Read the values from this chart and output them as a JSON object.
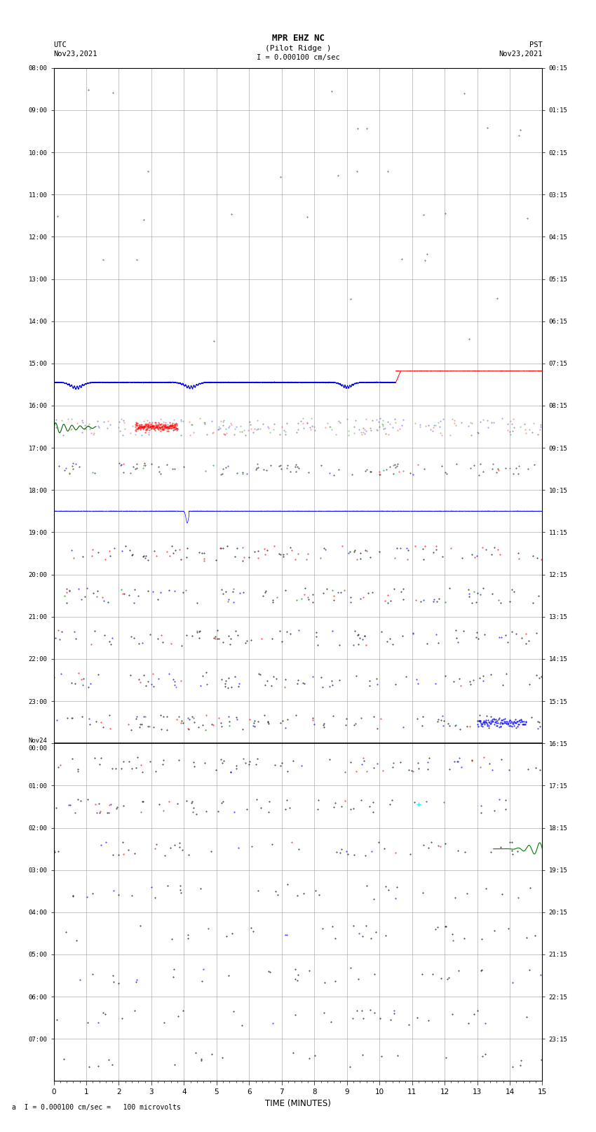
{
  "title_line1": "MPR EHZ NC",
  "title_line2": "(Pilot Ridge )",
  "title_scale": "I = 0.000100 cm/sec",
  "left_label_top": "UTC",
  "left_label_date": "Nov23,2021",
  "right_label_top": "PST",
  "right_label_date": "Nov23,2021",
  "left_times_utc": [
    "08:00",
    "09:00",
    "10:00",
    "11:00",
    "12:00",
    "13:00",
    "14:00",
    "15:00",
    "16:00",
    "17:00",
    "18:00",
    "19:00",
    "20:00",
    "21:00",
    "22:00",
    "23:00",
    "Nov24\n00:00",
    "01:00",
    "02:00",
    "03:00",
    "04:00",
    "05:00",
    "06:00",
    "07:00"
  ],
  "right_times_pst": [
    "00:15",
    "01:15",
    "02:15",
    "03:15",
    "04:15",
    "05:15",
    "06:15",
    "07:15",
    "08:15",
    "09:15",
    "10:15",
    "11:15",
    "12:15",
    "13:15",
    "14:15",
    "15:15",
    "16:15",
    "17:15",
    "18:15",
    "19:15",
    "20:15",
    "21:15",
    "22:15",
    "23:15"
  ],
  "xlabel": "TIME (MINUTES)",
  "footnote": "a  I = 0.000100 cm/sec =   100 microvolts",
  "xlim": [
    0,
    15
  ],
  "n_rows": 24,
  "background_color": "#ffffff",
  "grid_color": "#999999",
  "fig_width": 8.5,
  "fig_height": 16.13
}
